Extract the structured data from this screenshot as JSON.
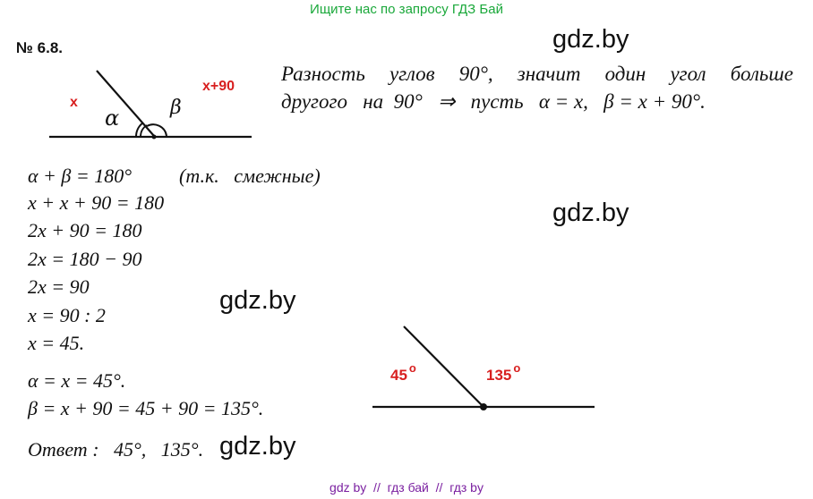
{
  "header": {
    "banner": "Ищите нас по запросу ГДЗ Бай",
    "problem_number": "№ 6.8."
  },
  "watermarks": [
    "gdz.by",
    "gdz.by",
    "gdz.by",
    "gdz.by"
  ],
  "description": {
    "line1_words": [
      "Разность",
      "углов",
      "90°,",
      "значит",
      "один",
      "угол",
      "больше"
    ],
    "line2": "другого   на  90°   ⇒   пусть   α = x,   β = x + 90°."
  },
  "figure1": {
    "label_x": "x",
    "label_x90": "x+90",
    "alpha": "α",
    "beta": "β"
  },
  "solution": {
    "eq1": "α + β = 180°",
    "eq1_note": "(т.к.   смежные)",
    "eq2": "x + x + 90 = 180",
    "eq3": "2x + 90 = 180",
    "eq4": "2x = 180 − 90",
    "eq5": "2x = 90",
    "eq6": "x = 90 : 2",
    "eq7": "x = 45.",
    "eq8": "α = x = 45°.",
    "eq9": "β = x + 90 = 45 + 90 = 135°.",
    "answer": "Ответ :   45°,   135°."
  },
  "figure2": {
    "angle1": "45",
    "angle2": "135",
    "degree_mark": "o"
  },
  "footer": {
    "links": "gdz by  //  гдз бай  //  гдз by"
  }
}
